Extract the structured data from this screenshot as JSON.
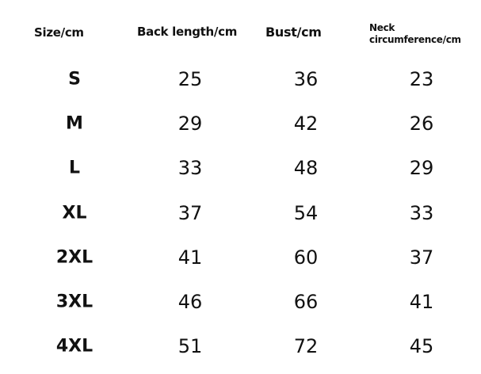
{
  "headers": [
    "Size/cm",
    "Back length/cm",
    "Bust/cm",
    "Neck circumference/cm"
  ],
  "neck_header_lines": [
    "Neck",
    "circumference/cm"
  ],
  "rows": [
    [
      "S",
      "25",
      "36",
      "23"
    ],
    [
      "M",
      "29",
      "42",
      "26"
    ],
    [
      "L",
      "33",
      "48",
      "29"
    ],
    [
      "XL",
      "37",
      "54",
      "33"
    ],
    [
      "2XL",
      "41",
      "60",
      "37"
    ],
    [
      "3XL",
      "46",
      "66",
      "41"
    ],
    [
      "4XL",
      "51",
      "72",
      "45"
    ]
  ]
}
